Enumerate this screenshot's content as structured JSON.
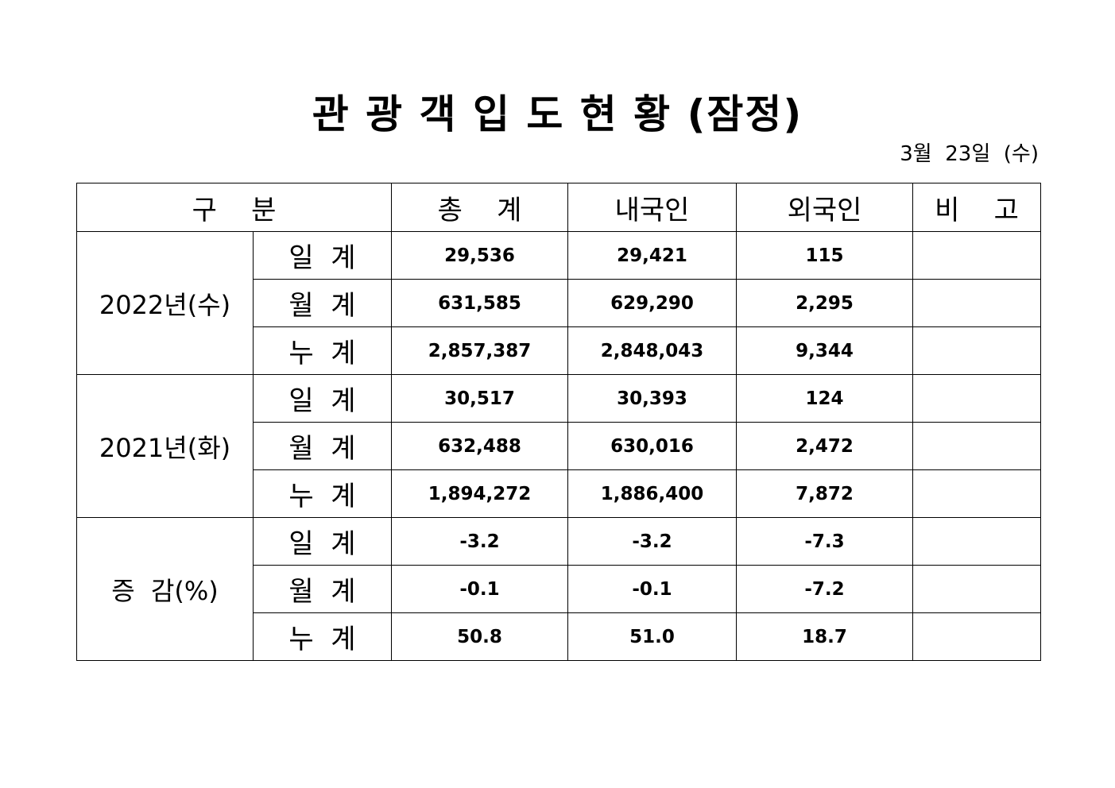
{
  "title": "관 광 객 입 도 현 황 (잠정)",
  "date": "3월  23일  (수)",
  "headers": {
    "category": "구    분",
    "total": "총    계",
    "domestic": "내국인",
    "foreign": "외국인",
    "remarks": "비    고"
  },
  "groups": [
    {
      "label": "2022년(수)",
      "rows": [
        {
          "sub": "일  계",
          "total": "29,536",
          "domestic": "29,421",
          "foreign": "115",
          "remarks": ""
        },
        {
          "sub": "월  계",
          "total": "631,585",
          "domestic": "629,290",
          "foreign": "2,295",
          "remarks": ""
        },
        {
          "sub": "누  계",
          "total": "2,857,387",
          "domestic": "2,848,043",
          "foreign": "9,344",
          "remarks": ""
        }
      ]
    },
    {
      "label": "2021년(화)",
      "rows": [
        {
          "sub": "일  계",
          "total": "30,517",
          "domestic": "30,393",
          "foreign": "124",
          "remarks": ""
        },
        {
          "sub": "월  계",
          "total": "632,488",
          "domestic": "630,016",
          "foreign": "2,472",
          "remarks": ""
        },
        {
          "sub": "누  계",
          "total": "1,894,272",
          "domestic": "1,886,400",
          "foreign": "7,872",
          "remarks": ""
        }
      ]
    },
    {
      "label": "증  감(%)",
      "rows": [
        {
          "sub": "일  계",
          "total": "-3.2",
          "domestic": "-3.2",
          "foreign": "-7.3",
          "remarks": ""
        },
        {
          "sub": "월  계",
          "total": "-0.1",
          "domestic": "-0.1",
          "foreign": "-7.2",
          "remarks": ""
        },
        {
          "sub": "누  계",
          "total": "50.8",
          "domestic": "51.0",
          "foreign": "18.7",
          "remarks": ""
        }
      ]
    }
  ]
}
